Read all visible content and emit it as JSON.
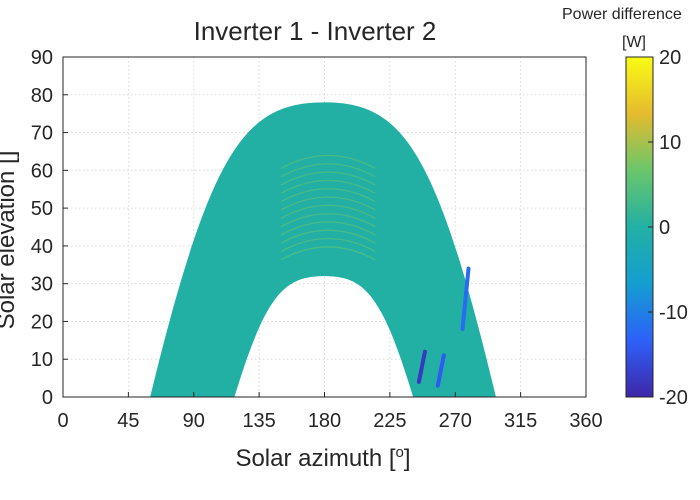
{
  "chart_data": {
    "type": "heatmap",
    "title": "Inverter 1 - Inverter 2",
    "xlabel_main": "Solar azimuth [",
    "xlabel_sup": "o",
    "xlabel_end": "]",
    "ylabel": "Solar elevation [",
    "ylabel_end": "]",
    "x_ticks": [
      "0",
      "45",
      "90",
      "135",
      "180",
      "225",
      "270",
      "315",
      "360"
    ],
    "y_ticks": [
      "0",
      "10",
      "20",
      "30",
      "40",
      "50",
      "60",
      "70",
      "80",
      "90"
    ],
    "xlim": [
      0,
      360
    ],
    "ylim": [
      0,
      90
    ],
    "grid": true,
    "colorbar": {
      "title": "Power difference",
      "unit": "[W]",
      "ticks": [
        "20",
        "10",
        "0",
        "-10",
        "-20"
      ],
      "range": [
        -20,
        20
      ],
      "colormap": [
        "#3e26a8",
        "#2d61f9",
        "#149ed1",
        "#22b0a4",
        "#6ac66b",
        "#e5bb2e",
        "#f9fb15"
      ]
    },
    "region": {
      "outer_arc": {
        "azimuth_start": 60,
        "azimuth_peak": 180,
        "azimuth_end": 298,
        "elevation_peak": 78
      },
      "inner_arc": {
        "azimuth_start": 118,
        "azimuth_peak": 180,
        "azimuth_end": 241,
        "elevation_peak": 32
      },
      "base_value": 0,
      "high_band": {
        "elevation_range": [
          40,
          65
        ],
        "azimuth_range": [
          150,
          215
        ],
        "value": 6
      },
      "low_streaks": [
        {
          "azimuth": 275,
          "elevation_range": [
            18,
            34
          ],
          "value": -12
        },
        {
          "azimuth": 258,
          "elevation_range": [
            3,
            11
          ],
          "value": -14
        },
        {
          "azimuth": 245,
          "elevation_range": [
            4,
            12
          ],
          "value": -18
        }
      ]
    }
  }
}
